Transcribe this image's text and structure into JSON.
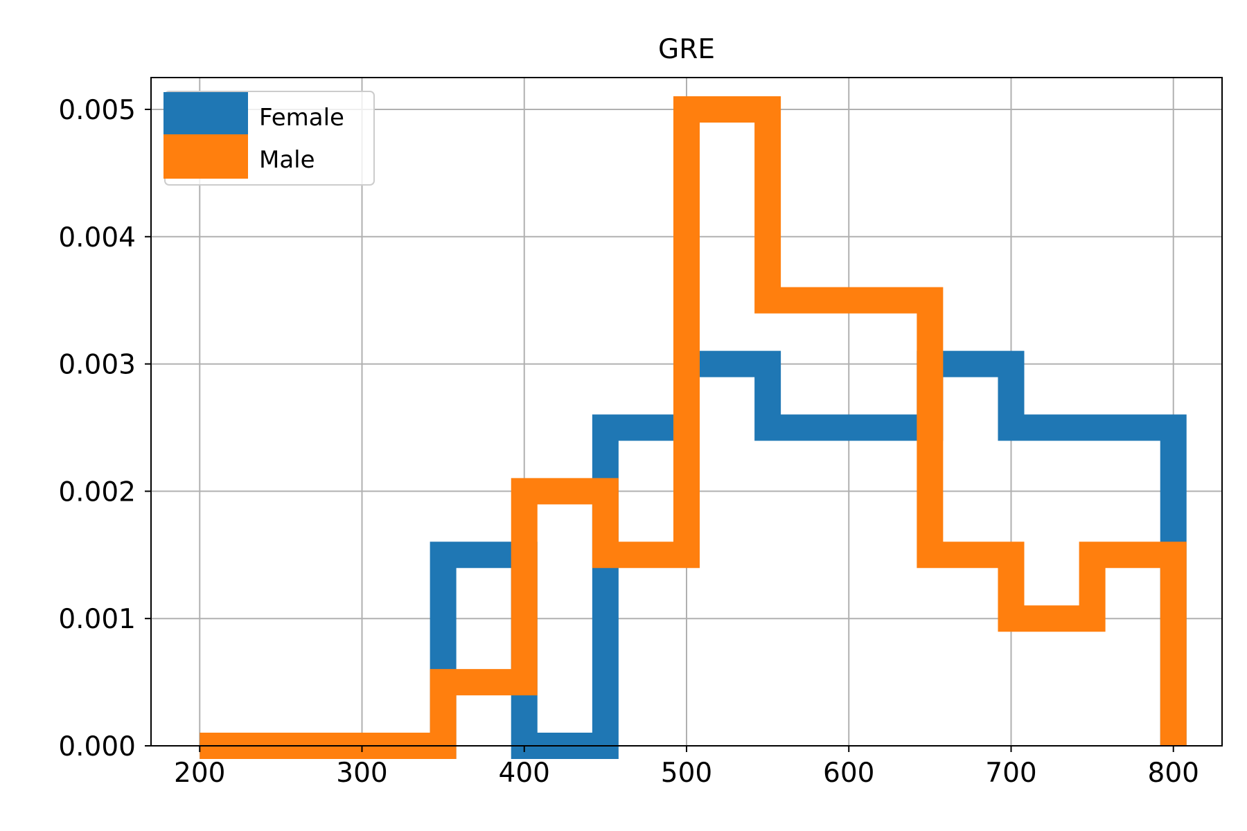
{
  "chart_data": {
    "type": "histogram",
    "histtype": "step",
    "density": true,
    "title": "GRE",
    "xlabel": "",
    "ylabel": "",
    "xlim": [
      170,
      830
    ],
    "ylim": [
      0,
      0.00525
    ],
    "grid": true,
    "legend_position": "upper left",
    "x_ticks": [
      200,
      300,
      400,
      500,
      600,
      700,
      800
    ],
    "x_tick_labels": [
      "200",
      "300",
      "400",
      "500",
      "600",
      "700",
      "800"
    ],
    "y_ticks": [
      0,
      0.001,
      0.002,
      0.003,
      0.004,
      0.005
    ],
    "y_tick_labels": [
      "0.000",
      "0.001",
      "0.002",
      "0.003",
      "0.004",
      "0.005"
    ],
    "series": [
      {
        "name": "Female",
        "color": "#1f77b4",
        "bin_edges": [
          200,
          250,
          300,
          350,
          400,
          450,
          500,
          550,
          600,
          650,
          700,
          750,
          800
        ],
        "values": [
          0,
          0,
          0,
          0.0015,
          0,
          0.0025,
          0.003,
          0.0025,
          0.0025,
          0.003,
          0.0025,
          0.0025
        ]
      },
      {
        "name": "Male",
        "color": "#ff7f0e",
        "bin_edges": [
          200,
          250,
          300,
          350,
          400,
          450,
          500,
          550,
          600,
          650,
          700,
          750,
          800
        ],
        "values": [
          0,
          0,
          0,
          0.0005,
          0.002,
          0.0015,
          0.005,
          0.0035,
          0.0035,
          0.0015,
          0.001,
          0.0015
        ]
      }
    ]
  }
}
